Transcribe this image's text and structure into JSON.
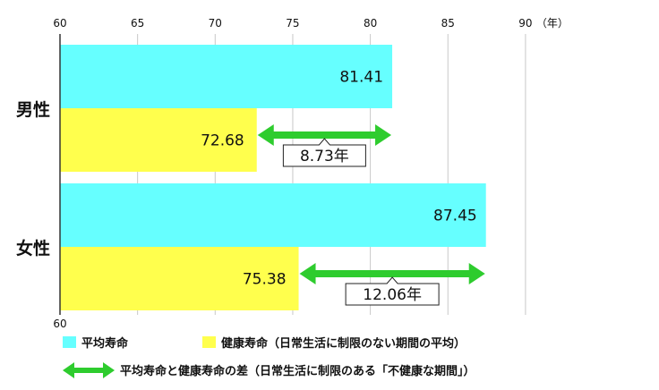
{
  "chart_data": {
    "type": "bar",
    "orientation": "horizontal",
    "axis_unit_label": "（年）",
    "xlim": [
      60,
      90
    ],
    "xticks": [
      60,
      65,
      70,
      75,
      80,
      85,
      90
    ],
    "grid": true,
    "groups": [
      "男性",
      "女性"
    ],
    "series": [
      {
        "name": "平均寿命",
        "color": "#66ffff",
        "values": [
          81.41,
          87.45
        ],
        "labels": [
          "81.41",
          "87.45"
        ]
      },
      {
        "name": "健康寿命（日常生活に制限のない期間の平均）",
        "color": "#ffff4d",
        "values": [
          72.68,
          75.38
        ],
        "labels": [
          "72.68",
          "75.38"
        ]
      }
    ],
    "differences": {
      "name": "平均寿命と健康寿命の差（日常生活に制限のある「不健康な期間」）",
      "color": "#2ecc2e",
      "values": [
        8.73,
        12.06
      ],
      "labels": [
        "8.73年",
        "12.06年"
      ]
    },
    "legend_position": "bottom"
  }
}
